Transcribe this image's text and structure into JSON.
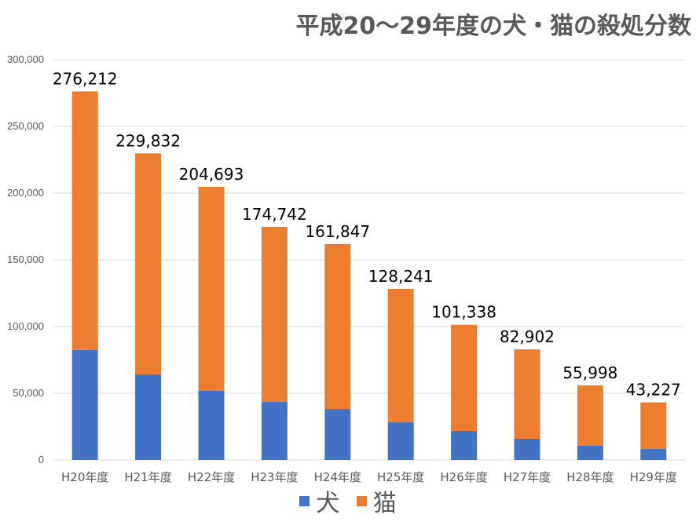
{
  "chart_data": {
    "type": "bar",
    "stacked": true,
    "title": "平成20〜29年度の犬・猫の殺処分数",
    "xlabel": "",
    "ylabel": "",
    "ylim": [
      0,
      300000
    ],
    "yticks": [
      0,
      50000,
      100000,
      150000,
      200000,
      250000,
      300000
    ],
    "ytick_labels": [
      "0",
      "50,000",
      "100,000",
      "150,000",
      "200,000",
      "250,000",
      "300,000"
    ],
    "grid": true,
    "legend_position": "bottom",
    "categories": [
      "H20年度",
      "H21年度",
      "H22年度",
      "H23年度",
      "H24年度",
      "H25年度",
      "H26年度",
      "H27年度",
      "H28年度",
      "H29年度"
    ],
    "series": [
      {
        "name": "犬",
        "color": "#4472C4",
        "values": [
          82400,
          64100,
          51800,
          43500,
          38200,
          28200,
          21800,
          15900,
          10600,
          8200
        ]
      },
      {
        "name": "猫",
        "color": "#ED7D31",
        "values": [
          193812,
          165732,
          152893,
          131242,
          123647,
          100041,
          79538,
          67002,
          45398,
          35027
        ]
      }
    ],
    "totals": [
      276212,
      229832,
      204693,
      174742,
      161847,
      128241,
      101338,
      82902,
      55998,
      43227
    ],
    "total_labels": [
      "276,212",
      "229,832",
      "204,693",
      "174,742",
      "161,847",
      "128,241",
      "101,338",
      "82,902",
      "55,998",
      "43,227"
    ],
    "gridline_color": "#D9D9D9"
  }
}
